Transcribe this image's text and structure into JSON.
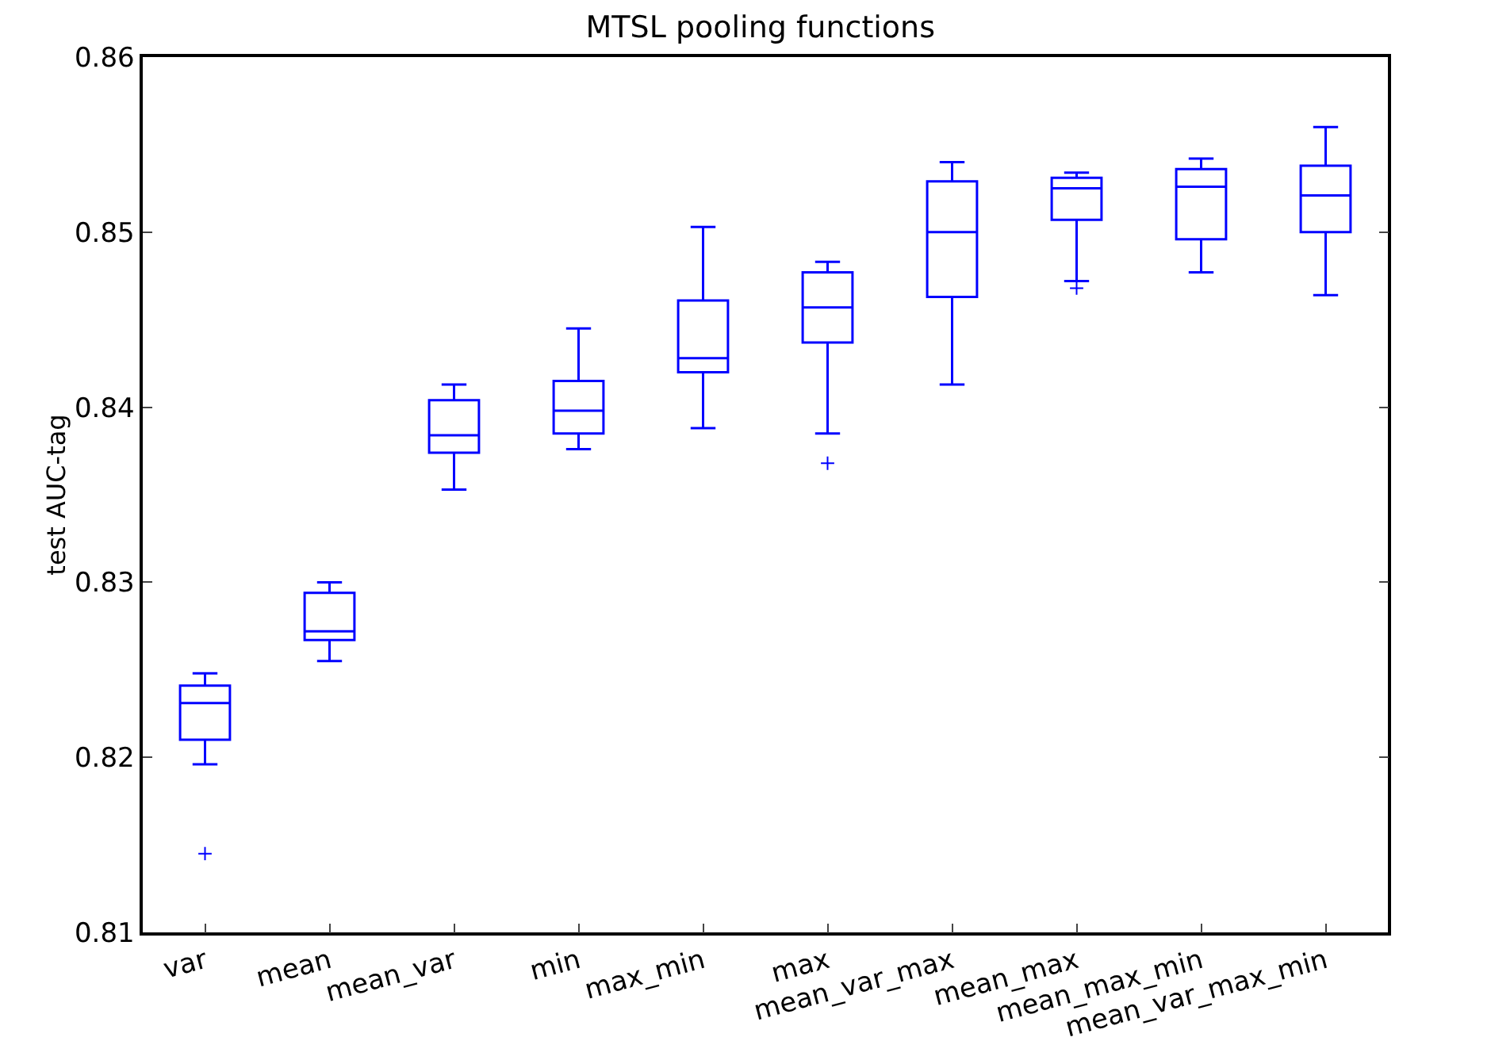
{
  "chart_data": {
    "type": "box",
    "title": "MTSL pooling functions",
    "ylabel": "test AUC-tag",
    "categories": [
      "var",
      "mean",
      "mean_var",
      "min",
      "max_min",
      "max",
      "mean_var_max",
      "mean_max",
      "mean_max_min",
      "mean_var_max_min"
    ],
    "boxes": [
      {
        "low": 0.8196,
        "q1": 0.821,
        "median": 0.8231,
        "q3": 0.8241,
        "high": 0.8248,
        "outliers": [
          0.8145
        ]
      },
      {
        "low": 0.8255,
        "q1": 0.8267,
        "median": 0.8272,
        "q3": 0.8294,
        "high": 0.83
      },
      {
        "low": 0.8353,
        "q1": 0.8374,
        "median": 0.8384,
        "q3": 0.8404,
        "high": 0.8413
      },
      {
        "low": 0.8376,
        "q1": 0.8385,
        "median": 0.8398,
        "q3": 0.8415,
        "high": 0.8445
      },
      {
        "low": 0.8388,
        "q1": 0.842,
        "median": 0.8428,
        "q3": 0.8461,
        "high": 0.8503
      },
      {
        "low": 0.8385,
        "q1": 0.8437,
        "median": 0.8457,
        "q3": 0.8477,
        "high": 0.8483,
        "outliers": [
          0.8368
        ]
      },
      {
        "low": 0.8413,
        "q1": 0.8463,
        "median": 0.85,
        "q3": 0.8529,
        "high": 0.854
      },
      {
        "low": 0.8472,
        "q1": 0.8507,
        "median": 0.8525,
        "q3": 0.8531,
        "high": 0.8534,
        "outliers": [
          0.8468
        ]
      },
      {
        "low": 0.8477,
        "q1": 0.8496,
        "median": 0.8526,
        "q3": 0.8536,
        "high": 0.8542
      },
      {
        "low": 0.8464,
        "q1": 0.85,
        "median": 0.8521,
        "q3": 0.8538,
        "high": 0.856
      }
    ],
    "color": "#0000ff",
    "ylim": [
      0.81,
      0.86
    ],
    "yticks": [
      0.81,
      0.82,
      0.83,
      0.84,
      0.85,
      0.86
    ],
    "grid": false
  }
}
